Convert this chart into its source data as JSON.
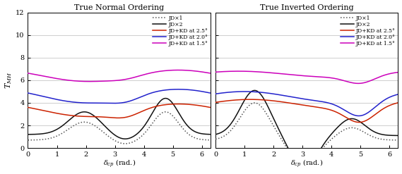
{
  "title_left": "True Normal Ordering",
  "title_right": "True Inverted Ordering",
  "xlabel": "\\delta_{cp} (rad.)",
  "ylabel": "T_{MH}",
  "xlim": [
    0,
    6.3
  ],
  "ylim": [
    0,
    12
  ],
  "yticks": [
    0,
    2,
    4,
    6,
    8,
    10,
    12
  ],
  "xticks": [
    0,
    1,
    2,
    3,
    4,
    5,
    6
  ],
  "legend_labels": [
    "JD×1",
    "JD×2",
    "JD+KD at 2.5°",
    "JD+KD at 2.0°",
    "JD+KD at 1.5°"
  ],
  "colors": [
    "#555555",
    "#111111",
    "#cc2200",
    "#2222cc",
    "#cc00bb"
  ],
  "background_color": "#ffffff",
  "grid_color": "#bbbbbb",
  "no_jdx1": {
    "base": 0.7,
    "a1": 1.6,
    "c1": 1.95,
    "s1": 0.55,
    "a2": 2.5,
    "c2": 4.75,
    "s2": 0.45,
    "a3": -0.4,
    "c3": 3.3,
    "s3": 0.4
  },
  "no_jdx2": {
    "base": 1.2,
    "a1": 2.0,
    "c1": 1.95,
    "s1": 0.55,
    "a2": 3.2,
    "c2": 4.75,
    "s2": 0.45,
    "a3": -0.5,
    "c3": 3.3,
    "s3": 0.4
  },
  "no_red": {
    "base": 2.8,
    "amp": 1.1,
    "phase": 0.55,
    "freq": 0.5,
    "a1": -0.5,
    "c1": 3.4,
    "s1": 0.5
  },
  "no_blue": {
    "base": 4.0,
    "amp": 1.2,
    "phase": 0.55,
    "freq": 0.5,
    "a1": -0.4,
    "c1": 3.4,
    "s1": 0.5
  },
  "no_mag": {
    "base": 5.9,
    "amp": 1.0,
    "phase": 0.55,
    "freq": 0.5,
    "a1": -0.2,
    "c1": 3.4,
    "s1": 0.5
  },
  "io_jdx1": {
    "base": 0.7,
    "a1": 3.3,
    "c1": 1.35,
    "s1": 0.5,
    "a2": -2.3,
    "c2": 3.05,
    "s2": 0.45,
    "a3": 1.1,
    "c3": 4.7,
    "s3": 0.45
  },
  "io_jdx2": {
    "base": 1.1,
    "a1": 4.0,
    "c1": 1.35,
    "s1": 0.5,
    "a2": -2.9,
    "c2": 3.05,
    "s2": 0.45,
    "a3": 1.5,
    "c3": 4.7,
    "s3": 0.45
  },
  "io_red": {
    "base": 3.5,
    "amp": 0.8,
    "phase": -0.6,
    "freq": 0.5,
    "a1": -1.3,
    "c1": 5.0,
    "s1": 0.5
  },
  "io_blue": {
    "base": 4.1,
    "amp": 0.9,
    "phase": -0.5,
    "freq": 0.5,
    "a1": -1.4,
    "c1": 5.0,
    "s1": 0.5
  },
  "io_mag": {
    "base": 6.3,
    "amp": 0.5,
    "phase": -0.4,
    "freq": 0.5,
    "a1": -0.7,
    "c1": 5.0,
    "s1": 0.5
  }
}
